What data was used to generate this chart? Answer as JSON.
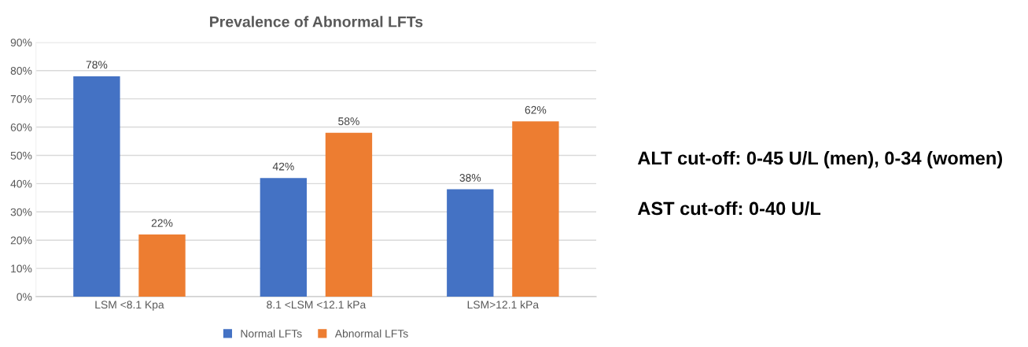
{
  "chart_data": {
    "type": "bar",
    "title": "Prevalence of Abnormal LFTs",
    "categories": [
      "LSM <8.1 Kpa",
      "8.1 <LSM <12.1 kPa",
      "LSM>12.1 kPa"
    ],
    "series": [
      {
        "name": "Normal LFTs",
        "color": "#4472c4",
        "values": [
          78,
          42,
          38
        ],
        "value_labels": [
          "78%",
          "42%",
          "38%"
        ]
      },
      {
        "name": "Abnormal LFTs",
        "color": "#ed7d31",
        "values": [
          22,
          58,
          62
        ],
        "value_labels": [
          "22%",
          "58%",
          "62%"
        ]
      }
    ],
    "ylim": [
      0,
      90
    ],
    "yticks": [
      {
        "value": 0,
        "label": "0%"
      },
      {
        "value": 10,
        "label": "10%"
      },
      {
        "value": 20,
        "label": "20%"
      },
      {
        "value": 30,
        "label": "30%"
      },
      {
        "value": 40,
        "label": "40%"
      },
      {
        "value": 50,
        "label": "50%"
      },
      {
        "value": 60,
        "label": "60%"
      },
      {
        "value": 70,
        "label": "70%"
      },
      {
        "value": 80,
        "label": "80%"
      },
      {
        "value": 90,
        "label": "90%"
      }
    ],
    "grid": "y",
    "legend": "bottom",
    "annotations": [
      "ALT cut-off: 0-45 U/L (men), 0-34 (women)",
      "AST cut-off: 0-40 U/L"
    ]
  }
}
